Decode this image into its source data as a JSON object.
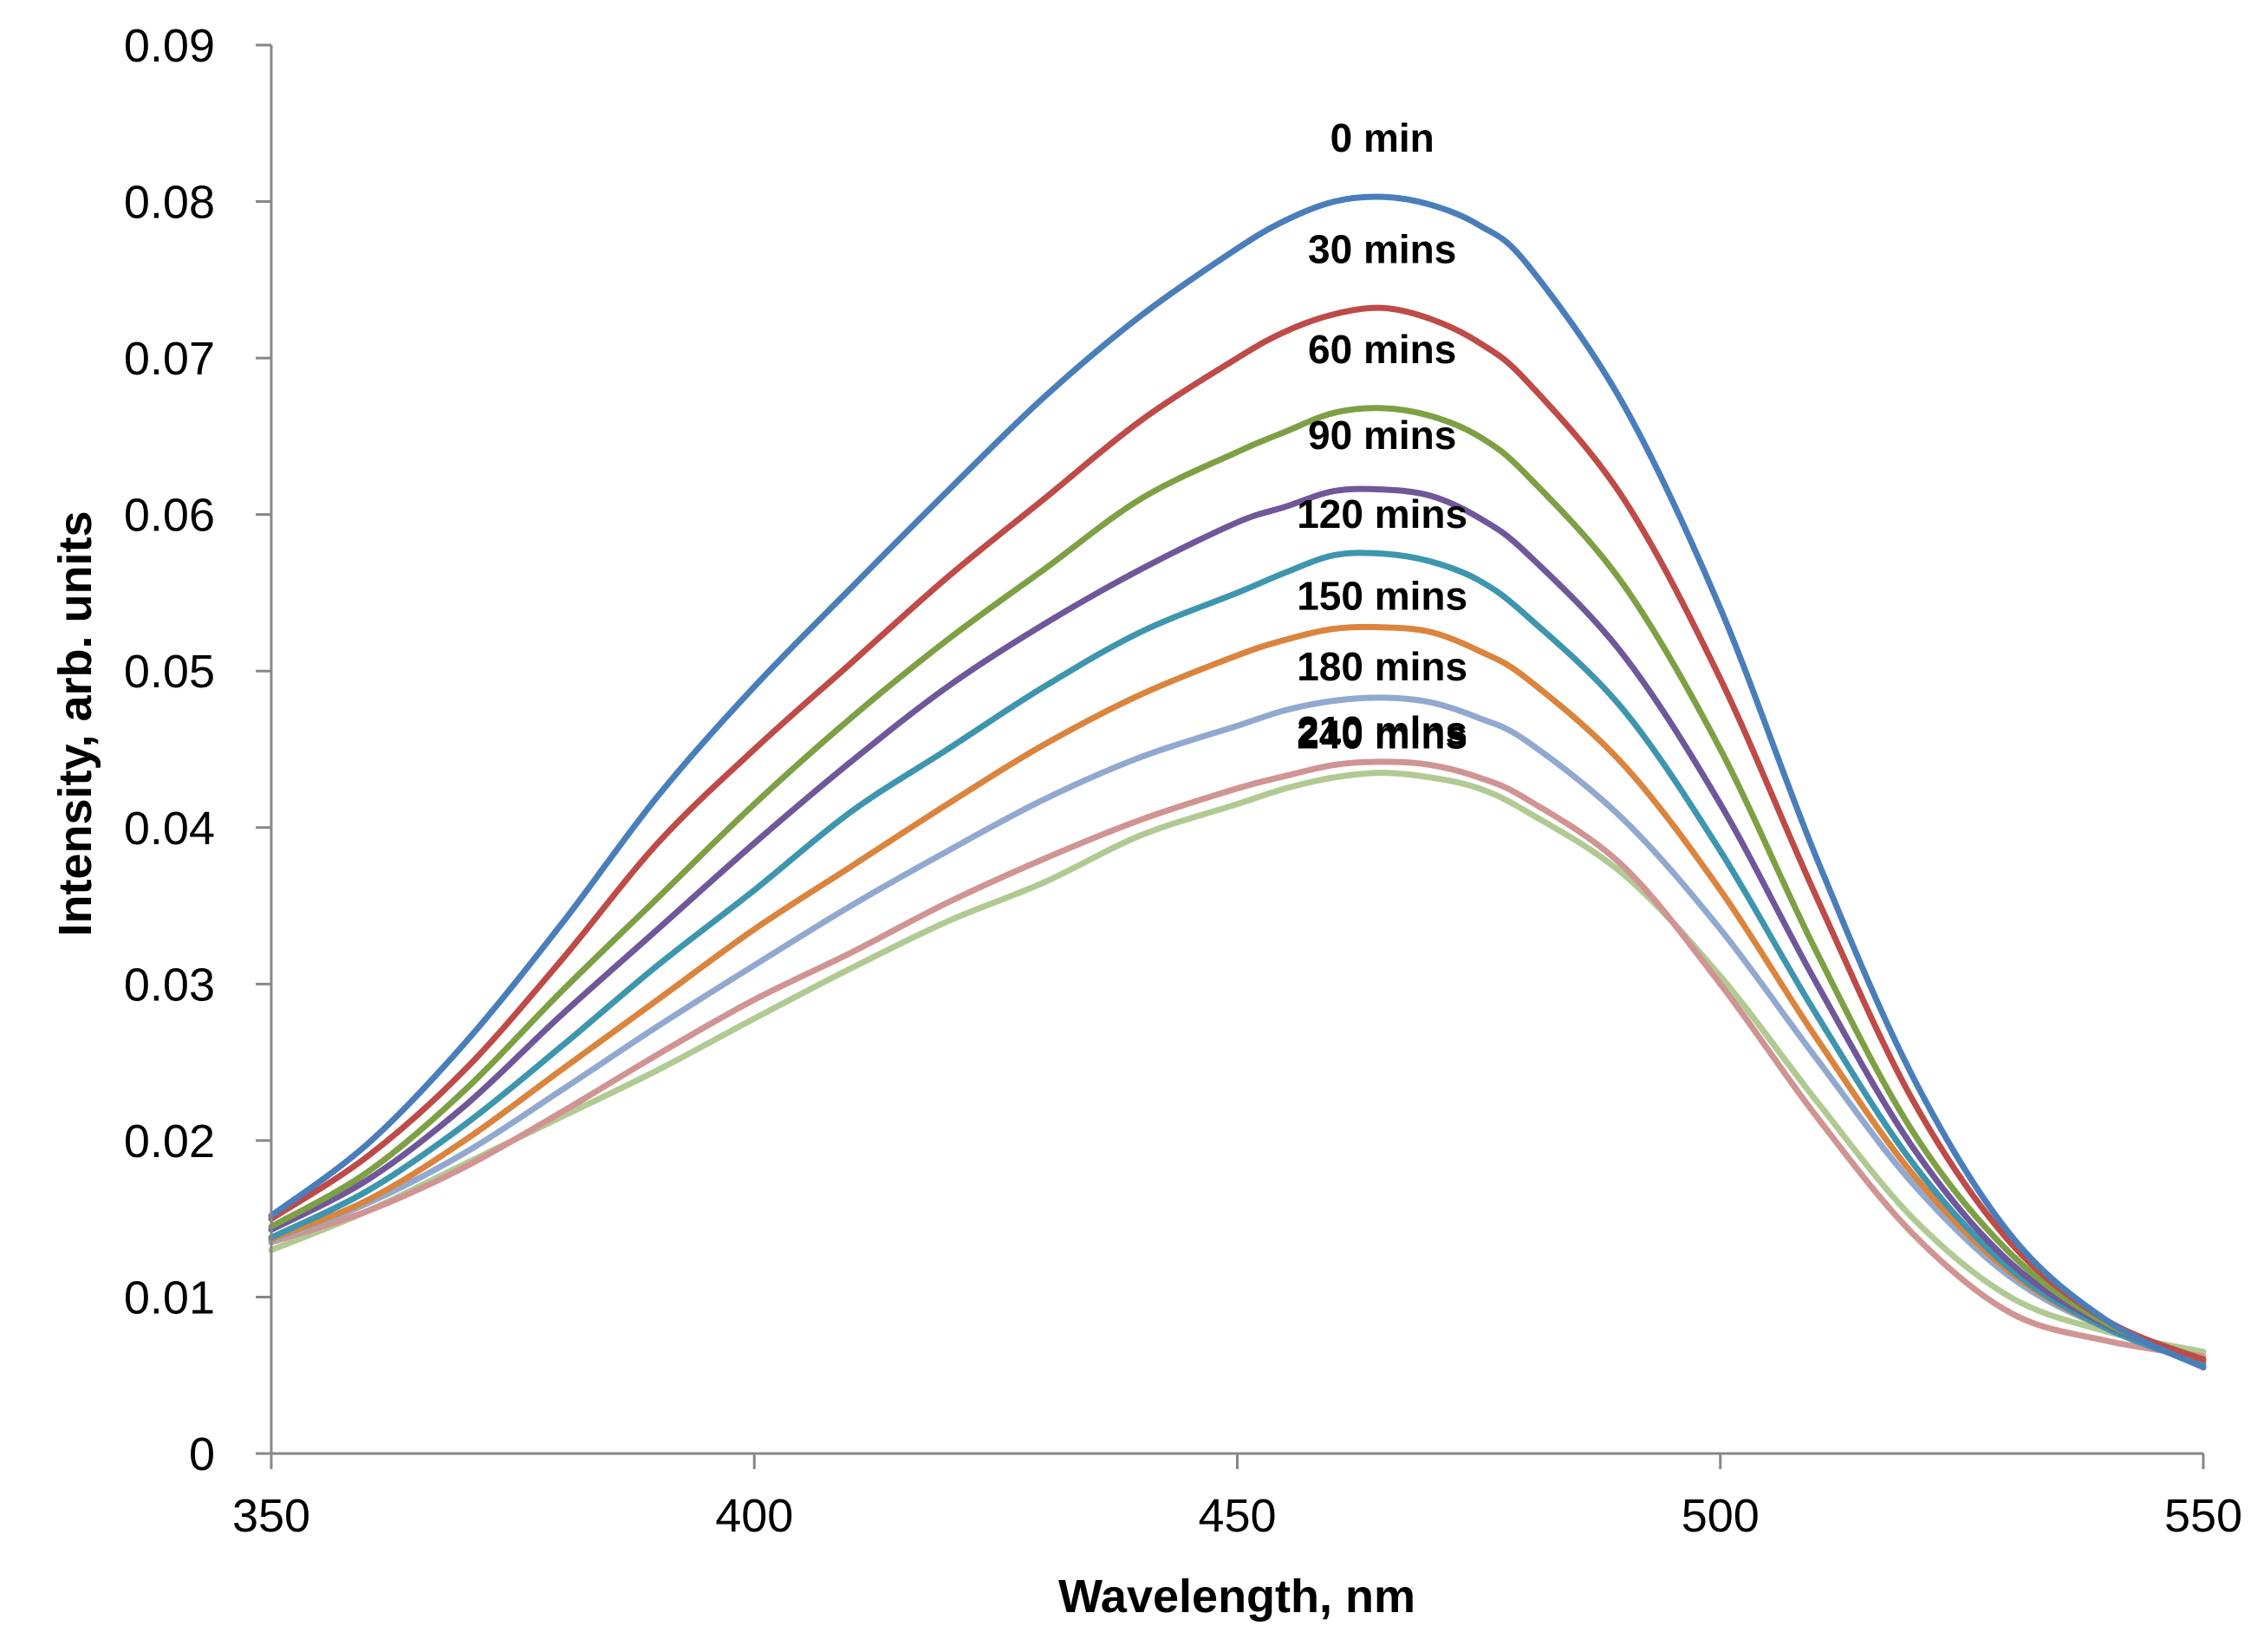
{
  "chart_data": {
    "type": "line",
    "title": "",
    "xlabel": "Wavelength, nm",
    "ylabel": "Intensity, arb. units",
    "xlim": [
      350,
      550
    ],
    "ylim": [
      0,
      0.09
    ],
    "xticks": [
      350,
      400,
      450,
      500,
      550
    ],
    "yticks": [
      0,
      0.01,
      0.02,
      0.03,
      0.04,
      0.05,
      0.06,
      0.07,
      0.08,
      0.09
    ],
    "ytick_labels": [
      "0",
      "0.01",
      "0.02",
      "0.03",
      "0.04",
      "0.05",
      "0.06",
      "0.07",
      "0.08",
      "0.09"
    ],
    "xtick_labels": [
      "350",
      "400",
      "450",
      "500",
      "550"
    ],
    "grid": false,
    "legend": "none",
    "x": [
      350,
      360,
      370,
      380,
      390,
      400,
      410,
      420,
      430,
      440,
      450,
      455,
      460,
      465,
      470,
      475,
      480,
      490,
      500,
      510,
      520,
      530,
      540,
      550
    ],
    "series": [
      {
        "name": "0 min",
        "label": "0 min",
        "color": "#4a7ebb",
        "values": [
          0.0152,
          0.0198,
          0.0262,
          0.0338,
          0.042,
          0.049,
          0.0553,
          0.0615,
          0.0675,
          0.0727,
          0.077,
          0.0788,
          0.08,
          0.0803,
          0.0798,
          0.0785,
          0.076,
          0.067,
          0.054,
          0.038,
          0.024,
          0.014,
          0.0085,
          0.0055
        ]
      },
      {
        "name": "30 mins",
        "label": "30 mins",
        "color": "#be4b48",
        "values": [
          0.015,
          0.019,
          0.0245,
          0.0315,
          0.039,
          0.045,
          0.0505,
          0.056,
          0.061,
          0.066,
          0.07,
          0.0717,
          0.0728,
          0.0732,
          0.0725,
          0.071,
          0.0685,
          0.061,
          0.0495,
          0.0355,
          0.0225,
          0.0135,
          0.0085,
          0.006
        ]
      },
      {
        "name": "60 mins",
        "label": "60 mins",
        "color": "#7ea045",
        "values": [
          0.0145,
          0.018,
          0.0232,
          0.0295,
          0.0355,
          0.0415,
          0.047,
          0.052,
          0.0565,
          0.061,
          0.064,
          0.0653,
          0.0665,
          0.0668,
          0.0663,
          0.065,
          0.0625,
          0.0555,
          0.045,
          0.032,
          0.0205,
          0.0128,
          0.0083,
          0.006
        ]
      },
      {
        "name": "90 mins",
        "label": "90 mins",
        "color": "#6f579a",
        "values": [
          0.0143,
          0.0175,
          0.0222,
          0.028,
          0.0335,
          0.039,
          0.0442,
          0.049,
          0.053,
          0.0565,
          0.0595,
          0.0605,
          0.0615,
          0.0616,
          0.0612,
          0.0598,
          0.0575,
          0.051,
          0.0415,
          0.03,
          0.0195,
          0.0122,
          0.0082,
          0.006
        ]
      },
      {
        "name": "120 mins",
        "label": "120 mins",
        "color": "#3d96ae",
        "values": [
          0.0138,
          0.0168,
          0.021,
          0.026,
          0.0312,
          0.036,
          0.041,
          0.045,
          0.049,
          0.0525,
          0.055,
          0.0563,
          0.0574,
          0.0575,
          0.057,
          0.0558,
          0.0535,
          0.0475,
          0.0385,
          0.028,
          0.0185,
          0.0118,
          0.008,
          0.0057
        ]
      },
      {
        "name": "150 mins",
        "label": "150 mins",
        "color": "#db843d",
        "values": [
          0.0137,
          0.0162,
          0.02,
          0.0245,
          0.029,
          0.0335,
          0.0375,
          0.0415,
          0.0453,
          0.0485,
          0.051,
          0.052,
          0.0527,
          0.0528,
          0.0525,
          0.0513,
          0.0495,
          0.044,
          0.036,
          0.0265,
          0.0178,
          0.0116,
          0.008,
          0.0058
        ]
      },
      {
        "name": "180 mins",
        "label": "180 mins",
        "color": "#92a9cf",
        "values": [
          0.0136,
          0.016,
          0.0192,
          0.0232,
          0.0273,
          0.0312,
          0.035,
          0.0385,
          0.0418,
          0.0445,
          0.0465,
          0.0475,
          0.0481,
          0.0483,
          0.048,
          0.047,
          0.0455,
          0.0405,
          0.0335,
          0.0252,
          0.0172,
          0.0113,
          0.008,
          0.006
        ]
      },
      {
        "name": "210 mins",
        "label": "210 mins",
        "color": "#d09493",
        "values": [
          0.0135,
          0.0155,
          0.0183,
          0.0218,
          0.0255,
          0.029,
          0.032,
          0.0352,
          0.038,
          0.0405,
          0.0425,
          0.0433,
          0.044,
          0.0442,
          0.044,
          0.0432,
          0.0418,
          0.0375,
          0.03,
          0.0215,
          0.014,
          0.009,
          0.0072,
          0.0062
        ]
      },
      {
        "name": "240 mins",
        "label": "240 mins",
        "color": "#b1ca93",
        "values": [
          0.013,
          0.0155,
          0.0185,
          0.0215,
          0.0245,
          0.0278,
          0.031,
          0.034,
          0.0365,
          0.0395,
          0.0415,
          0.0425,
          0.0432,
          0.0435,
          0.0432,
          0.0425,
          0.041,
          0.037,
          0.0305,
          0.0225,
          0.015,
          0.01,
          0.0078,
          0.0065
        ]
      }
    ]
  }
}
